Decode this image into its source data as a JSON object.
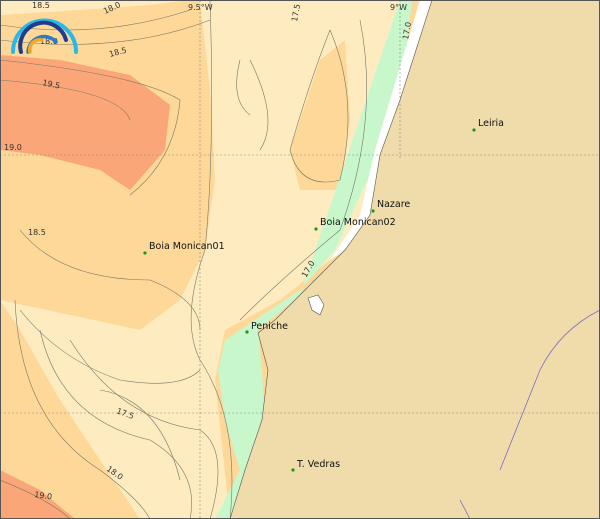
{
  "map": {
    "graticule_labels": [
      "9.5°W",
      "9°W"
    ],
    "contour_labels": [
      "18.5",
      "18.0",
      "18.0",
      "18.5",
      "19.5",
      "19.0",
      "18.5",
      "17.5",
      "17.0",
      "17.0",
      "17.5",
      "18.0",
      "19.0"
    ],
    "places": [
      {
        "name": "Leiria"
      },
      {
        "name": "Nazare"
      },
      {
        "name": "Boia Monican02"
      },
      {
        "name": "Boia Monican01"
      },
      {
        "name": "Peniche"
      },
      {
        "name": "T. Vedras"
      }
    ],
    "colors": {
      "land": "#efdcaa",
      "sea_warm": "#fba678",
      "sea_mid": "#fdd898",
      "sea_light": "#feecc0",
      "shelf": "#c8f7cc",
      "marker": "#1a9a1a",
      "river": "#7b6fc8"
    },
    "logo": "wave-arcs-logo"
  }
}
